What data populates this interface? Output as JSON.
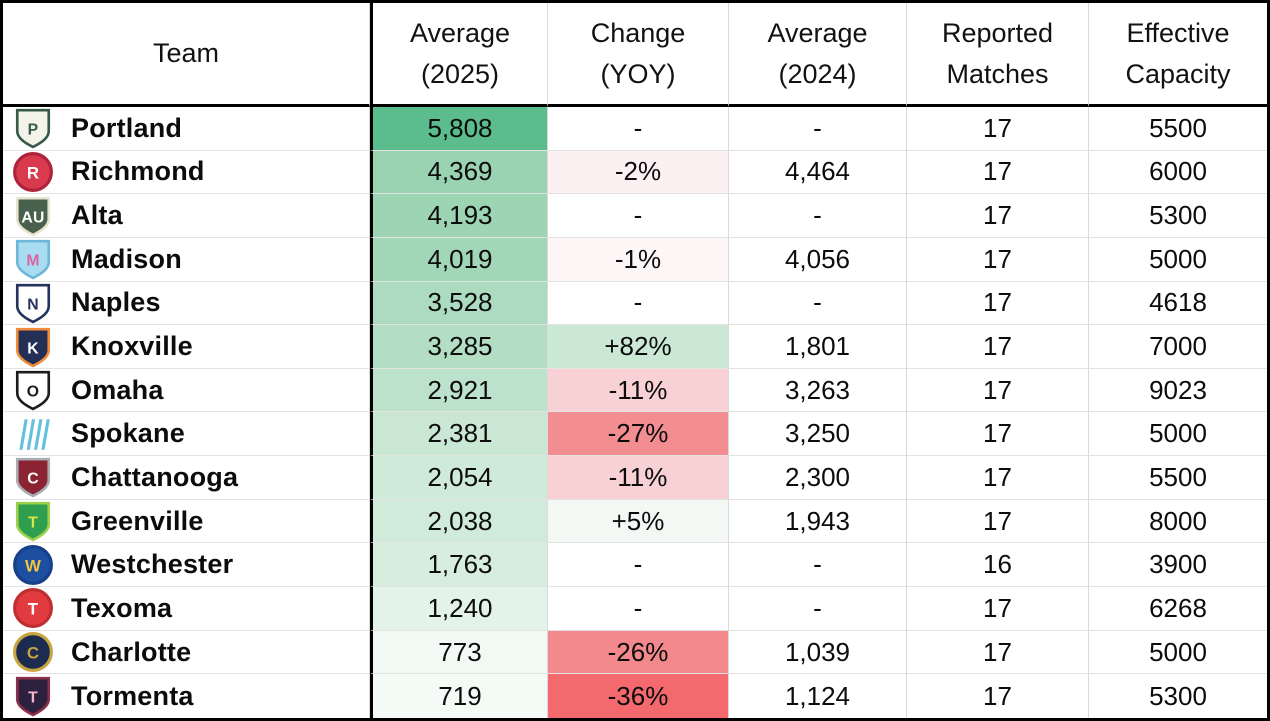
{
  "chart_data": {
    "type": "table",
    "title": "Team attendance table",
    "heatmap_legend": {
      "avg_2025_max_color": "#5bbc8d",
      "avg_2025_min_color": "#f6fbf8",
      "change_positive_color": "#cbe8d4",
      "change_negative_color": "#f3696e"
    },
    "columns": [
      {
        "id": "team",
        "label": "Team",
        "label_lines": [
          "Team"
        ]
      },
      {
        "id": "avg_2025",
        "label": "Average (2025)",
        "label_lines": [
          "Average",
          "(2025)"
        ]
      },
      {
        "id": "change_yoy",
        "label": "Change (YOY)",
        "label_lines": [
          "Change",
          "(YOY)"
        ]
      },
      {
        "id": "avg_2024",
        "label": "Average (2024)",
        "label_lines": [
          "Average",
          "(2024)"
        ]
      },
      {
        "id": "reported_matches",
        "label": "Reported Matches",
        "label_lines": [
          "Reported",
          "Matches"
        ]
      },
      {
        "id": "effective_capacity",
        "label": "Effective Capacity",
        "label_lines": [
          "Effective",
          "Capacity"
        ]
      }
    ],
    "rows": [
      {
        "team": "Portland",
        "avg_2025": "5,808",
        "change_yoy": "-",
        "avg_2024": "-",
        "reported_matches": "17",
        "effective_capacity": "5500",
        "avg_2025_bg": "#5bbc8d",
        "change_bg": "#ffffff",
        "logo": {
          "shape": "shield",
          "bg": "#f4f3ea",
          "border": "#355a47",
          "text": "P",
          "text_color": "#355a47"
        }
      },
      {
        "team": "Richmond",
        "avg_2025": "4,369",
        "change_yoy": "-2%",
        "avg_2024": "4,464",
        "reported_matches": "17",
        "effective_capacity": "6000",
        "avg_2025_bg": "#99d3b1",
        "change_bg": "#fcf0f2",
        "logo": {
          "shape": "circle",
          "bg": "#d93a4e",
          "border": "#b02239",
          "text": "R",
          "text_color": "#ffffff"
        }
      },
      {
        "team": "Alta",
        "avg_2025": "4,193",
        "change_yoy": "-",
        "avg_2024": "-",
        "reported_matches": "17",
        "effective_capacity": "5300",
        "avg_2025_bg": "#9dd5b4",
        "change_bg": "#ffffff",
        "logo": {
          "shape": "shield",
          "bg": "#47614d",
          "border": "#e8e4d0",
          "text": "AU",
          "text_color": "#ffffff"
        }
      },
      {
        "team": "Madison",
        "avg_2025": "4,019",
        "change_yoy": "-1%",
        "avg_2024": "4,056",
        "reported_matches": "17",
        "effective_capacity": "5000",
        "avg_2025_bg": "#a1d7b7",
        "change_bg": "#fdf6f7",
        "logo": {
          "shape": "shield",
          "bg": "#a8dcf0",
          "border": "#6db7d8",
          "text": "M",
          "text_color": "#d864a5"
        }
      },
      {
        "team": "Naples",
        "avg_2025": "3,528",
        "change_yoy": "-",
        "avg_2024": "-",
        "reported_matches": "17",
        "effective_capacity": "4618",
        "avg_2025_bg": "#addbc0",
        "change_bg": "#ffffff",
        "logo": {
          "shape": "shield",
          "bg": "#ffffff",
          "border": "#24335c",
          "text": "N",
          "text_color": "#24335c"
        }
      },
      {
        "team": "Knoxville",
        "avg_2025": "3,285",
        "change_yoy": "+82%",
        "avg_2024": "1,801",
        "reported_matches": "17",
        "effective_capacity": "7000",
        "avg_2025_bg": "#b3dec4",
        "change_bg": "#cbe8d4",
        "logo": {
          "shape": "shield",
          "bg": "#232f54",
          "border": "#f08c3a",
          "text": "K",
          "text_color": "#ffffff"
        }
      },
      {
        "team": "Omaha",
        "avg_2025": "2,921",
        "change_yoy": "-11%",
        "avg_2024": "3,263",
        "reported_matches": "17",
        "effective_capacity": "9023",
        "avg_2025_bg": "#bce2cb",
        "change_bg": "#f8d1d5",
        "logo": {
          "shape": "shield",
          "bg": "#ffffff",
          "border": "#1c1c1c",
          "text": "O",
          "text_color": "#1c1c1c"
        }
      },
      {
        "team": "Spokane",
        "avg_2025": "2,381",
        "change_yoy": "-27%",
        "avg_2024": "3,250",
        "reported_matches": "17",
        "effective_capacity": "5000",
        "avg_2025_bg": "#c9e7d3",
        "change_bg": "#f28d92",
        "logo": {
          "shape": "stripes",
          "bg": "#63c1dd",
          "border": "#63c1dd",
          "text": "",
          "text_color": "#63c1dd"
        }
      },
      {
        "team": "Chattanooga",
        "avg_2025": "2,054",
        "change_yoy": "-11%",
        "avg_2024": "2,300",
        "reported_matches": "17",
        "effective_capacity": "5500",
        "avg_2025_bg": "#cfead8",
        "change_bg": "#f8d1d5",
        "logo": {
          "shape": "shield",
          "bg": "#8c2332",
          "border": "#a9aeb4",
          "text": "C",
          "text_color": "#ffffff"
        }
      },
      {
        "team": "Greenville",
        "avg_2025": "2,038",
        "change_yoy": "+5%",
        "avg_2024": "1,943",
        "reported_matches": "17",
        "effective_capacity": "8000",
        "avg_2025_bg": "#d0ebd9",
        "change_bg": "#f3f8f5",
        "logo": {
          "shape": "shield",
          "bg": "#2f9e4f",
          "border": "#9bd24a",
          "text": "T",
          "text_color": "#d6e94b"
        }
      },
      {
        "team": "Westchester",
        "avg_2025": "1,763",
        "change_yoy": "-",
        "avg_2024": "-",
        "reported_matches": "16",
        "effective_capacity": "3900",
        "avg_2025_bg": "#d7eedf",
        "change_bg": "#ffffff",
        "logo": {
          "shape": "circle",
          "bg": "#1c4fa0",
          "border": "#16408a",
          "text": "W",
          "text_color": "#f2c53d"
        }
      },
      {
        "team": "Texoma",
        "avg_2025": "1,240",
        "change_yoy": "-",
        "avg_2024": "-",
        "reported_matches": "17",
        "effective_capacity": "6268",
        "avg_2025_bg": "#e4f3e9",
        "change_bg": "#ffffff",
        "logo": {
          "shape": "circle",
          "bg": "#e23b3f",
          "border": "#bf2e33",
          "text": "T",
          "text_color": "#ffffff"
        }
      },
      {
        "team": "Charlotte",
        "avg_2025": "773",
        "change_yoy": "-26%",
        "avg_2024": "1,039",
        "reported_matches": "17",
        "effective_capacity": "5000",
        "avg_2025_bg": "#f2f9f5",
        "change_bg": "#f4898d",
        "logo": {
          "shape": "circle",
          "bg": "#1b2c50",
          "border": "#c8a43e",
          "text": "C",
          "text_color": "#c8a43e"
        }
      },
      {
        "team": "Tormenta",
        "avg_2025": "719",
        "change_yoy": "-36%",
        "avg_2024": "1,124",
        "reported_matches": "17",
        "effective_capacity": "5300",
        "avg_2025_bg": "#f4faf6",
        "change_bg": "#f3696e",
        "logo": {
          "shape": "shield",
          "bg": "#2e2140",
          "border": "#8c2f49",
          "text": "T",
          "text_color": "#f3b8c8"
        }
      }
    ]
  },
  "colors": {
    "outer_border": "#000000",
    "header_divider": "#000000",
    "grid_line": "#d9d9d9",
    "text": "#0c0c0c"
  }
}
